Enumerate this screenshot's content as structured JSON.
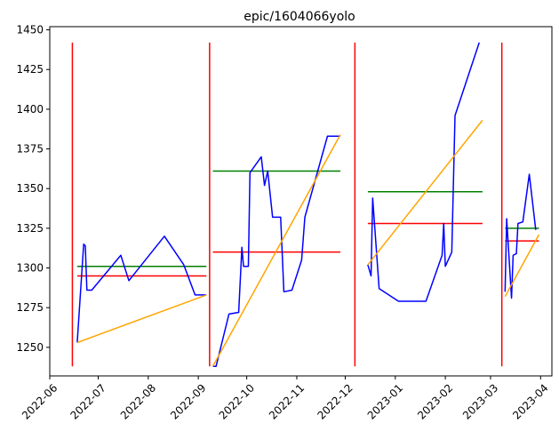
{
  "chart_data": {
    "type": "line",
    "title": "epic/1604066yolo",
    "xlabel": "",
    "ylabel": "",
    "xlim": [
      "2022-06-01",
      "2023-04-08"
    ],
    "ylim": [
      1232,
      1452
    ],
    "x_ticks": [
      "2022-06",
      "2022-07",
      "2022-08",
      "2022-09",
      "2022-10",
      "2022-11",
      "2022-12",
      "2023-01",
      "2023-02",
      "2023-03",
      "2023-04"
    ],
    "y_ticks": [
      1250,
      1275,
      1300,
      1325,
      1350,
      1375,
      1400,
      1425,
      1450
    ],
    "grid": false,
    "colors": {
      "series": "#0000ff",
      "trend": "#ffa500",
      "mean": "#008000",
      "median": "#ff0000",
      "boundary": "#ff0000"
    },
    "boundaries": [
      "2022-06-15",
      "2022-09-08",
      "2022-12-07",
      "2023-03-08"
    ],
    "boundary_range": [
      1238,
      1442
    ],
    "segments": [
      {
        "points": [
          [
            "2022-06-18",
            1253
          ],
          [
            "2022-06-22",
            1315
          ],
          [
            "2022-06-23",
            1314
          ],
          [
            "2022-06-24",
            1286
          ],
          [
            "2022-06-27",
            1286
          ],
          [
            "2022-07-15",
            1308
          ],
          [
            "2022-07-20",
            1292
          ],
          [
            "2022-08-11",
            1320
          ],
          [
            "2022-08-23",
            1302
          ],
          [
            "2022-08-30",
            1283
          ],
          [
            "2022-09-06",
            1283
          ]
        ],
        "trend": [
          [
            "2022-06-18",
            1253
          ],
          [
            "2022-09-06",
            1283
          ]
        ],
        "mean": {
          "value": 1301,
          "start": "2022-06-18",
          "end": "2022-09-06"
        },
        "median": {
          "value": 1295,
          "start": "2022-06-18",
          "end": "2022-09-06"
        }
      },
      {
        "points": [
          [
            "2022-09-10",
            1238
          ],
          [
            "2022-09-12",
            1238
          ],
          [
            "2022-09-20",
            1271
          ],
          [
            "2022-09-26",
            1272
          ],
          [
            "2022-09-28",
            1313
          ],
          [
            "2022-09-29",
            1301
          ],
          [
            "2022-10-02",
            1301
          ],
          [
            "2022-10-03",
            1360
          ],
          [
            "2022-10-10",
            1370
          ],
          [
            "2022-10-12",
            1352
          ],
          [
            "2022-10-14",
            1361
          ],
          [
            "2022-10-17",
            1332
          ],
          [
            "2022-10-22",
            1332
          ],
          [
            "2022-10-24",
            1285
          ],
          [
            "2022-10-29",
            1286
          ],
          [
            "2022-11-04",
            1305
          ],
          [
            "2022-11-06",
            1332
          ],
          [
            "2022-11-20",
            1383
          ],
          [
            "2022-11-28",
            1383
          ]
        ],
        "trend": [
          [
            "2022-09-10",
            1238
          ],
          [
            "2022-11-28",
            1384
          ]
        ],
        "mean": {
          "value": 1361,
          "start": "2022-09-10",
          "end": "2022-11-28"
        },
        "median": {
          "value": 1310,
          "start": "2022-09-10",
          "end": "2022-11-28"
        }
      },
      {
        "points": [
          [
            "2022-12-15",
            1302
          ],
          [
            "2022-12-17",
            1295
          ],
          [
            "2022-12-18",
            1344
          ],
          [
            "2022-12-22",
            1287
          ],
          [
            "2023-01-03",
            1279
          ],
          [
            "2023-01-20",
            1279
          ],
          [
            "2023-01-30",
            1308
          ],
          [
            "2023-01-31",
            1328
          ],
          [
            "2023-02-01",
            1301
          ],
          [
            "2023-02-05",
            1310
          ],
          [
            "2023-02-07",
            1396
          ],
          [
            "2023-02-22",
            1442
          ]
        ],
        "trend": [
          [
            "2022-12-15",
            1302
          ],
          [
            "2023-02-24",
            1393
          ]
        ],
        "mean": {
          "value": 1348,
          "start": "2022-12-15",
          "end": "2023-02-24"
        },
        "median": {
          "value": 1328,
          "start": "2022-12-15",
          "end": "2023-02-24"
        }
      },
      {
        "points": [
          [
            "2023-03-10",
            1285
          ],
          [
            "2023-03-11",
            1331
          ],
          [
            "2023-03-14",
            1281
          ],
          [
            "2023-03-15",
            1308
          ],
          [
            "2023-03-17",
            1309
          ],
          [
            "2023-03-18",
            1328
          ],
          [
            "2023-03-21",
            1329
          ],
          [
            "2023-03-25",
            1359
          ],
          [
            "2023-03-29",
            1324
          ]
        ],
        "trend": [
          [
            "2023-03-10",
            1282
          ],
          [
            "2023-03-31",
            1321
          ]
        ],
        "mean": {
          "value": 1325,
          "start": "2023-03-10",
          "end": "2023-03-31"
        },
        "median": {
          "value": 1317,
          "start": "2023-03-10",
          "end": "2023-03-31"
        }
      }
    ]
  }
}
